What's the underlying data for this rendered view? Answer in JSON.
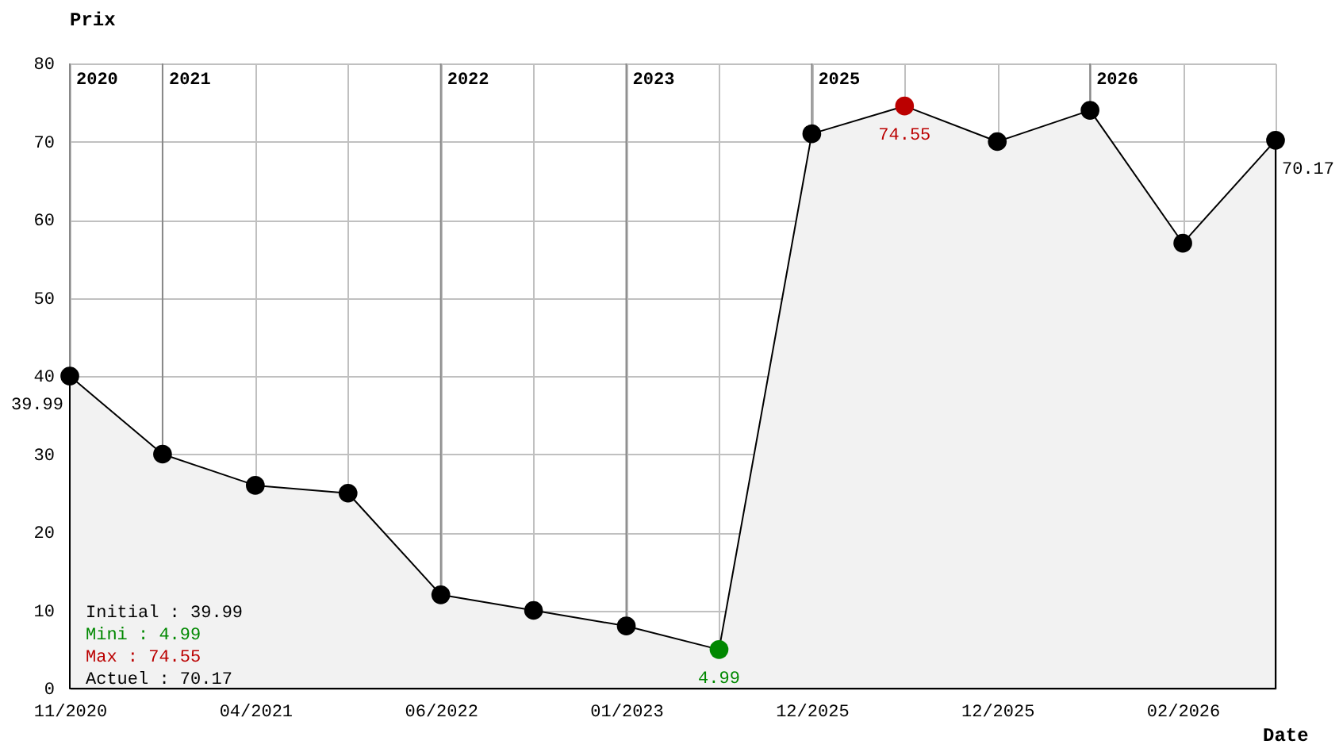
{
  "chart_data": {
    "type": "area",
    "xlabel": "Date",
    "ylabel": "Prix",
    "categories": [
      "11/2020",
      null,
      "04/2021",
      null,
      "06/2022",
      null,
      "01/2023",
      null,
      "12/2025",
      null,
      "12/2025",
      null,
      "02/2026",
      null
    ],
    "series": [
      {
        "color": "#000000",
        "values": [
          39.99,
          30,
          26,
          25,
          12,
          10,
          8,
          4.99,
          71,
          74.55,
          70,
          74,
          57,
          70.17
        ],
        "colors": [
          "#000000",
          "#000000",
          "#000000",
          "#000000",
          "#000000",
          "#000000",
          "#000000",
          "#008800",
          "#000000",
          "#bb0000",
          "#000000",
          "#000000",
          "#000000",
          "#000000"
        ],
        "value_labels": [
          "39.99",
          null,
          null,
          null,
          null,
          null,
          null,
          "4.99",
          null,
          "74.55",
          null,
          null,
          null,
          "70.17"
        ]
      }
    ],
    "ylim": [
      0,
      80
    ],
    "yticks": [
      0,
      10,
      20,
      30,
      40,
      50,
      60,
      70,
      80
    ],
    "grid": true,
    "marker": "circle",
    "annotations": [
      "2020",
      "2021",
      "2022",
      "2023",
      "2025",
      "2026",
      "Initial : 39.99",
      "Mini : 4.99",
      "Max : 74.55",
      "Actuel : 70.17"
    ]
  }
}
